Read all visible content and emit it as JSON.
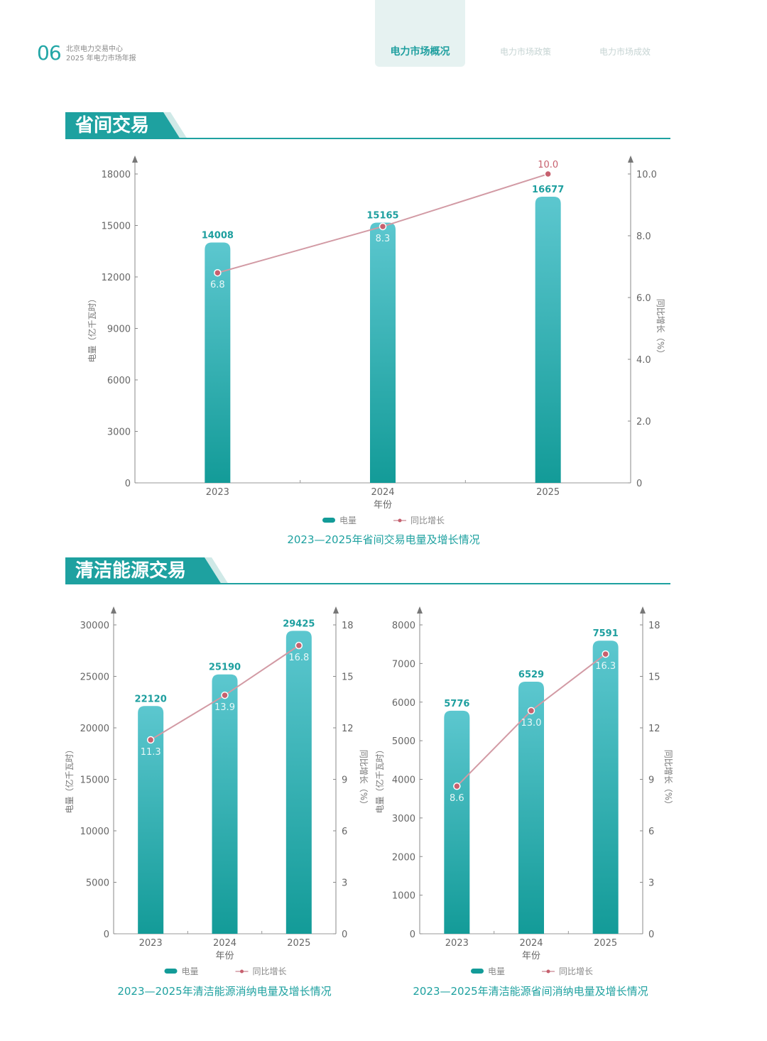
{
  "header": {
    "page_number": "06",
    "org_line1": "北京电力交易中心",
    "org_line2": "2025 年电力市场年报",
    "nav": [
      "电力市场概况",
      "电力市场政策",
      "电力市场成效"
    ]
  },
  "sections": [
    {
      "title": "省间交易"
    },
    {
      "title": "清洁能源交易"
    }
  ],
  "colors": {
    "accent": "#1ea1a0",
    "bar_top": "#5cc7cf",
    "bar_bottom": "#139b98",
    "line": "#d29aa4",
    "point": "#c7606e"
  },
  "chart_data": [
    {
      "type": "bar",
      "title": "2023—2025年省间交易电量及增长情况",
      "xlabel": "年份",
      "ylabel": "电量（亿千瓦时）",
      "y2label": "同比增长（%）",
      "categories": [
        "2023",
        "2024",
        "2025"
      ],
      "ylim": [
        0,
        18000
      ],
      "yticks": [
        "0",
        "3000",
        "6000",
        "9000",
        "12000",
        "15000",
        "18000"
      ],
      "y2lim": [
        0,
        10
      ],
      "y2ticks": [
        "0",
        "2.0",
        "4.0",
        "6.0",
        "8.0",
        "10.0"
      ],
      "series": [
        {
          "name": "电量",
          "kind": "bar",
          "values": [
            14008,
            15165,
            16677
          ],
          "labels": [
            "14008",
            "15165",
            "16677"
          ]
        },
        {
          "name": "同比增长",
          "kind": "line",
          "axis": "right",
          "values": [
            6.8,
            8.3,
            10.0
          ],
          "labels": [
            "6.8",
            "8.3",
            "10.0"
          ]
        }
      ],
      "legend": {
        "position": "bottom",
        "items": [
          "电量",
          "同比增长"
        ]
      }
    },
    {
      "type": "bar",
      "title": "2023—2025年清洁能源消纳电量及增长情况",
      "xlabel": "年份",
      "ylabel": "电量（亿千瓦时）",
      "y2label": "同比增长（%）",
      "categories": [
        "2023",
        "2024",
        "2025"
      ],
      "ylim": [
        0,
        30000
      ],
      "yticks": [
        "0",
        "5000",
        "10000",
        "15000",
        "20000",
        "25000",
        "30000"
      ],
      "y2lim": [
        0,
        18
      ],
      "y2ticks": [
        "0",
        "3",
        "6",
        "9",
        "12",
        "15",
        "18"
      ],
      "series": [
        {
          "name": "电量",
          "kind": "bar",
          "values": [
            22120,
            25190,
            29425
          ],
          "labels": [
            "22120",
            "25190",
            "29425"
          ]
        },
        {
          "name": "同比增长",
          "kind": "line",
          "axis": "right",
          "values": [
            11.3,
            13.9,
            16.8
          ],
          "labels": [
            "11.3",
            "13.9",
            "16.8"
          ]
        }
      ],
      "legend": {
        "position": "bottom",
        "items": [
          "电量",
          "同比增长"
        ]
      }
    },
    {
      "type": "bar",
      "title": "2023—2025年清洁能源省间消纳电量及增长情况",
      "xlabel": "年份",
      "ylabel": "电量（亿千瓦时）",
      "y2label": "同比增长（%）",
      "categories": [
        "2023",
        "2024",
        "2025"
      ],
      "ylim": [
        0,
        8000
      ],
      "yticks": [
        "0",
        "1000",
        "2000",
        "3000",
        "4000",
        "5000",
        "6000",
        "7000",
        "8000"
      ],
      "y2lim": [
        0,
        18
      ],
      "y2ticks": [
        "0",
        "3",
        "6",
        "9",
        "12",
        "15",
        "18"
      ],
      "series": [
        {
          "name": "电量",
          "kind": "bar",
          "values": [
            5776,
            6529,
            7591
          ],
          "labels": [
            "5776",
            "6529",
            "7591"
          ]
        },
        {
          "name": "同比增长",
          "kind": "line",
          "axis": "right",
          "values": [
            8.6,
            13.0,
            16.3
          ],
          "labels": [
            "8.6",
            "13.0",
            "16.3"
          ]
        }
      ],
      "legend": {
        "position": "bottom",
        "items": [
          "电量",
          "同比增长"
        ]
      }
    }
  ]
}
